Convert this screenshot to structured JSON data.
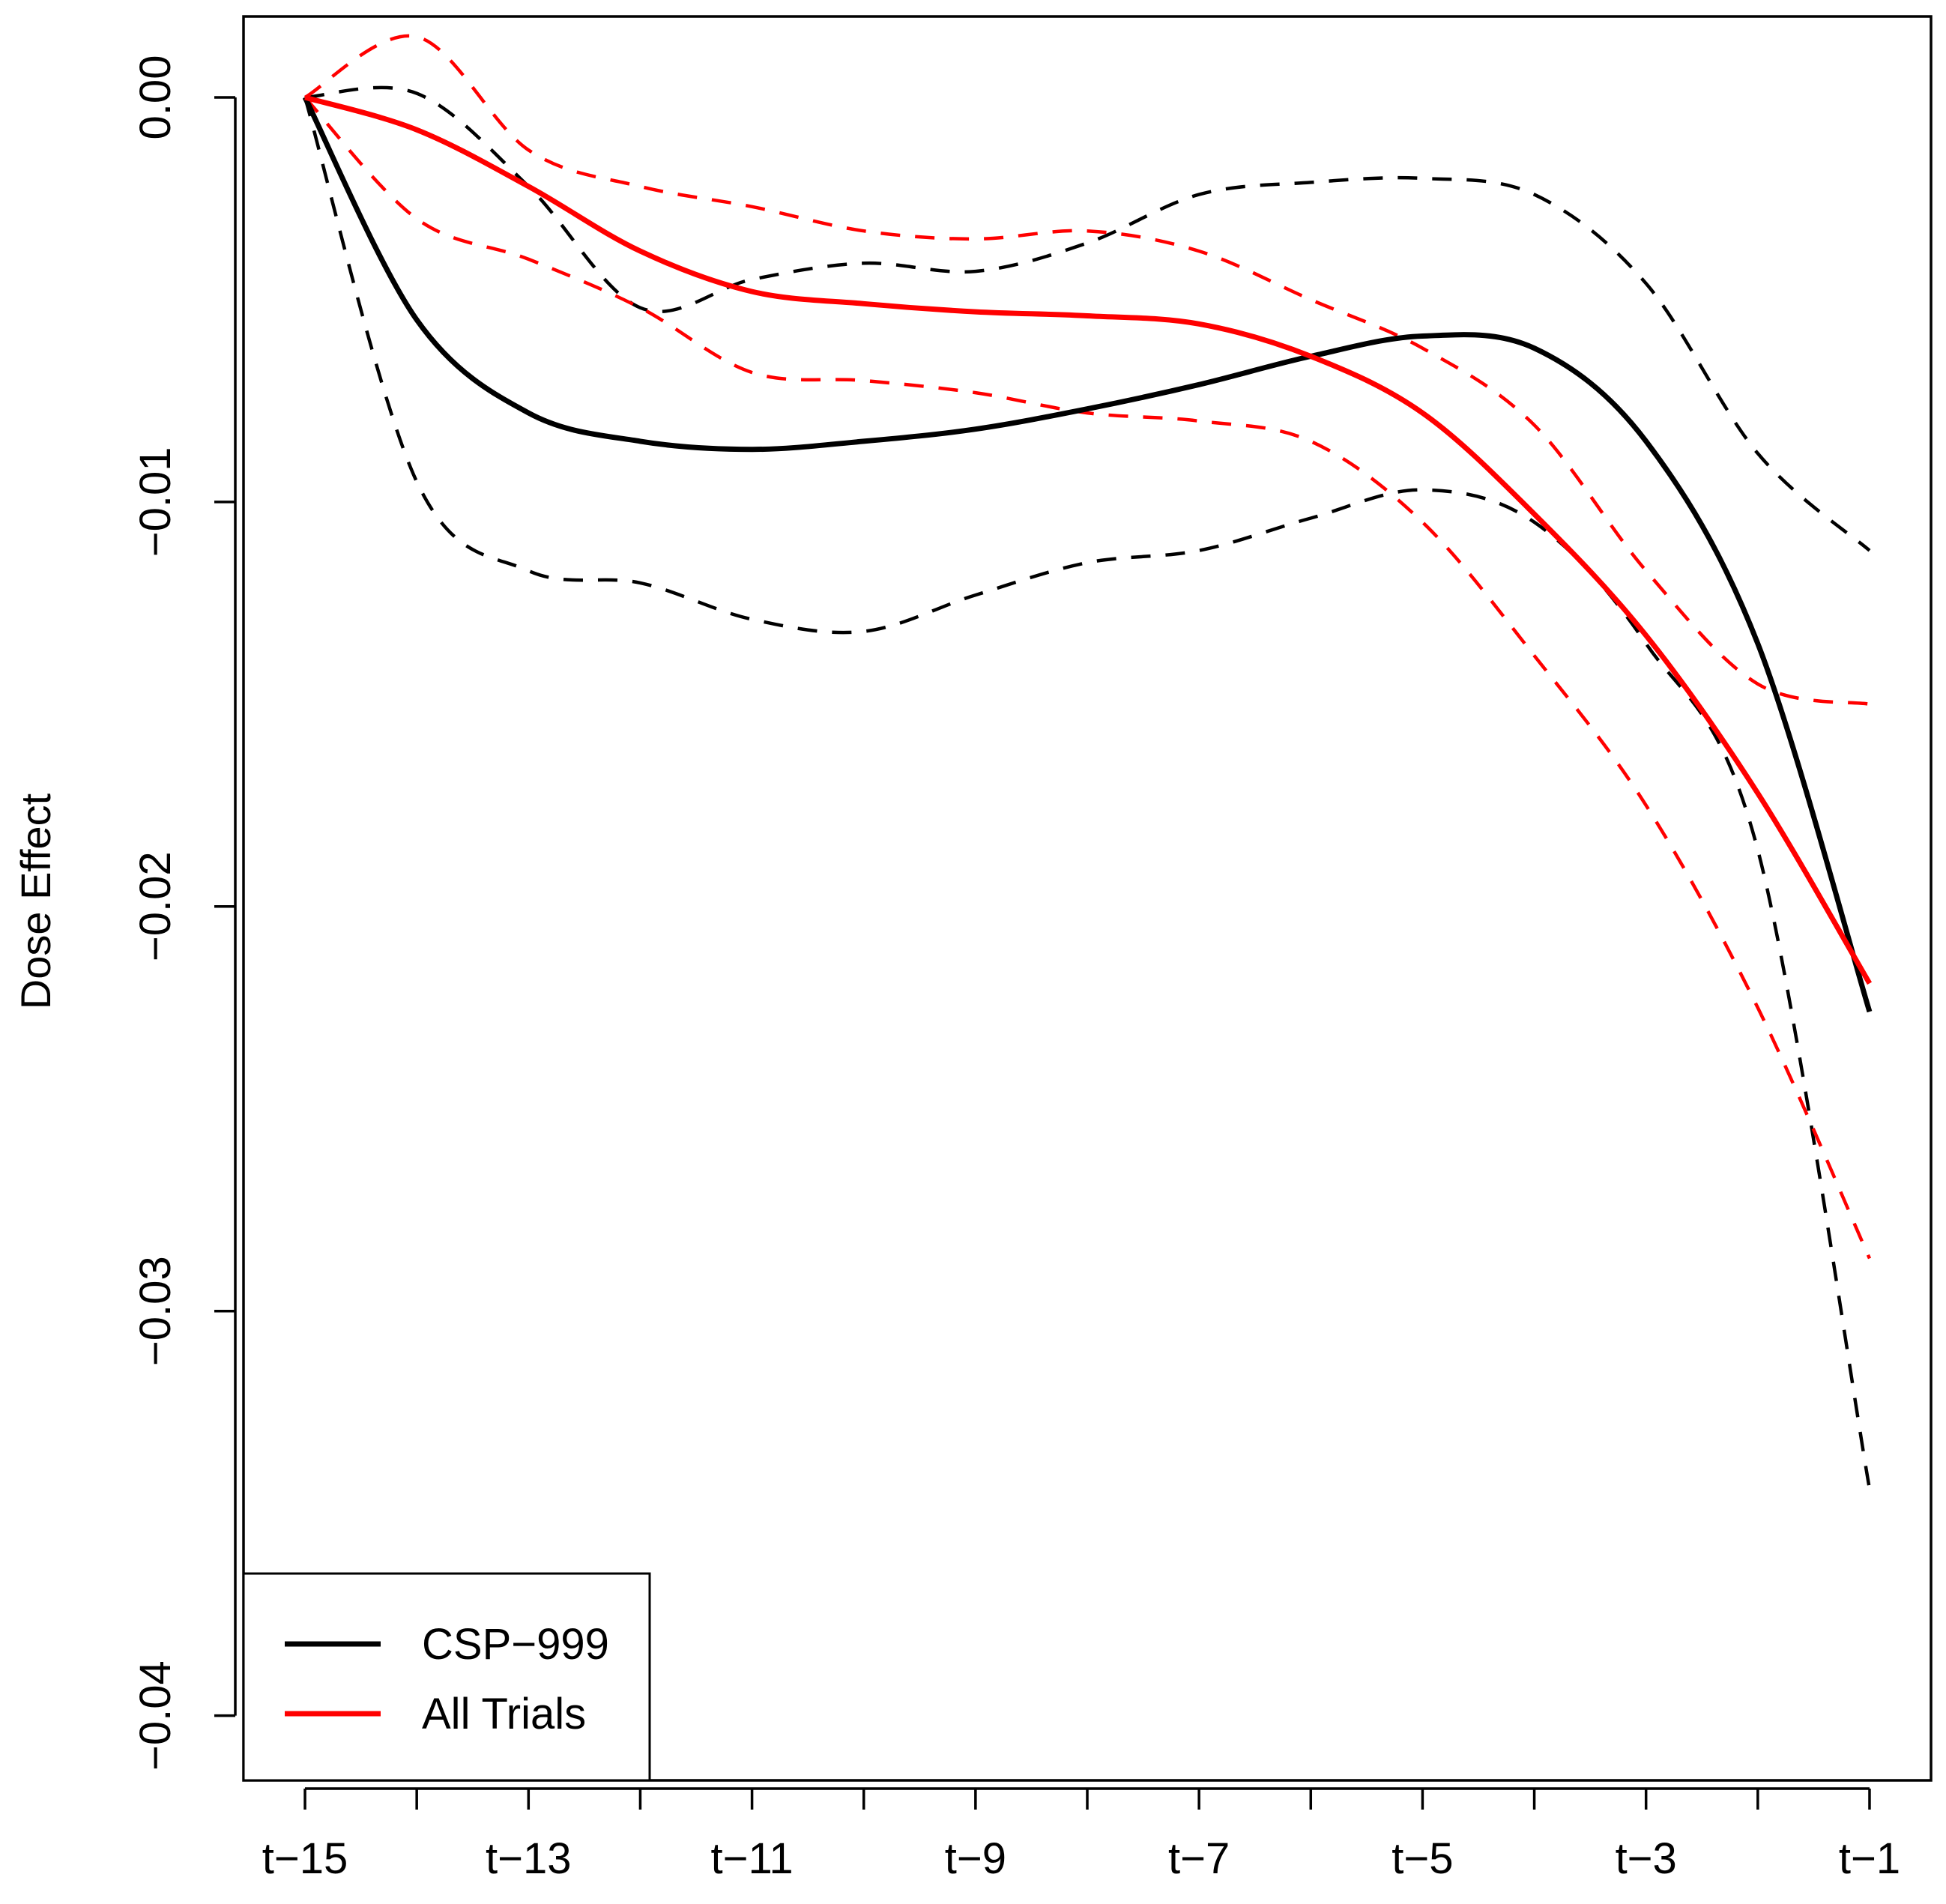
{
  "chart_data": {
    "type": "line",
    "title": "",
    "xlabel": "",
    "ylabel": "Dose Effect",
    "x": [
      -15,
      -14,
      -13,
      -12,
      -11,
      -10,
      -9,
      -8,
      -7,
      -6,
      -5,
      -4,
      -3,
      -2,
      -1
    ],
    "x_ticks": [
      -15,
      -14,
      -13,
      -12,
      -11,
      -10,
      -9,
      -8,
      -7,
      -6,
      -5,
      -4,
      -3,
      -2,
      -1
    ],
    "x_tick_labels": [
      {
        "x": -15,
        "label": "t−15"
      },
      {
        "x": -13,
        "label": "t−13"
      },
      {
        "x": -11,
        "label": "t−11"
      },
      {
        "x": -9,
        "label": "t−9"
      },
      {
        "x": -7,
        "label": "t−7"
      },
      {
        "x": -5,
        "label": "t−5"
      },
      {
        "x": -3,
        "label": "t−3"
      },
      {
        "x": -1,
        "label": "t−1"
      }
    ],
    "xlim": [
      -15.55,
      -0.45
    ],
    "y_ticks": [
      {
        "value": 0.0,
        "label": "0.00"
      },
      {
        "value": -0.01,
        "label": "−0.01"
      },
      {
        "value": -0.02,
        "label": "−0.02"
      },
      {
        "value": -0.03,
        "label": "−0.03"
      },
      {
        "value": -0.04,
        "label": "−0.04"
      }
    ],
    "ylim": [
      -0.0416,
      0.002
    ],
    "grid": false,
    "legend_position": "bottom-left",
    "series": [
      {
        "name": "CSP−999",
        "legend": true,
        "style": "solid",
        "color": "#000000",
        "values": [
          0.0,
          -0.0055,
          -0.0078,
          -0.0085,
          -0.0087,
          -0.0085,
          -0.0082,
          -0.0077,
          -0.0071,
          -0.0064,
          -0.0059,
          -0.0062,
          -0.0085,
          -0.0135,
          -0.0226
        ]
      },
      {
        "name": "All Trials",
        "legend": true,
        "style": "solid",
        "color": "#ff0000",
        "values": [
          0.0,
          -0.0008,
          -0.0022,
          -0.0038,
          -0.0048,
          -0.0051,
          -0.0053,
          -0.0054,
          -0.0056,
          -0.0064,
          -0.0078,
          -0.0103,
          -0.0133,
          -0.0172,
          -0.0219
        ]
      },
      {
        "name": "CSP−999 upper",
        "legend": false,
        "style": "dashed",
        "color": "#000000",
        "values": [
          0.0,
          0.0001,
          -0.0022,
          -0.0052,
          -0.0045,
          -0.0041,
          -0.0043,
          -0.0036,
          -0.0024,
          -0.0021,
          -0.002,
          -0.0024,
          -0.0046,
          -0.0088,
          -0.0112
        ]
      },
      {
        "name": "CSP−999 lower",
        "legend": false,
        "style": "dashed",
        "color": "#000000",
        "values": [
          0.0,
          -0.0095,
          -0.0117,
          -0.012,
          -0.0129,
          -0.0132,
          -0.0123,
          -0.0115,
          -0.0112,
          -0.0104,
          -0.0097,
          -0.0105,
          -0.0135,
          -0.0186,
          -0.0344
        ]
      },
      {
        "name": "All Trials upper",
        "legend": false,
        "style": "dashed",
        "color": "#ff0000",
        "values": [
          0.0,
          0.0015,
          -0.0013,
          -0.0022,
          -0.0027,
          -0.0033,
          -0.0035,
          -0.0033,
          -0.0038,
          -0.005,
          -0.0062,
          -0.0081,
          -0.0117,
          -0.0145,
          -0.015
        ]
      },
      {
        "name": "All Trials lower",
        "legend": false,
        "style": "dashed",
        "color": "#ff0000",
        "values": [
          0.0,
          -0.003,
          -0.004,
          -0.0052,
          -0.0068,
          -0.007,
          -0.0073,
          -0.0078,
          -0.008,
          -0.0085,
          -0.0105,
          -0.0138,
          -0.0175,
          -0.0225,
          -0.0287
        ]
      }
    ]
  }
}
